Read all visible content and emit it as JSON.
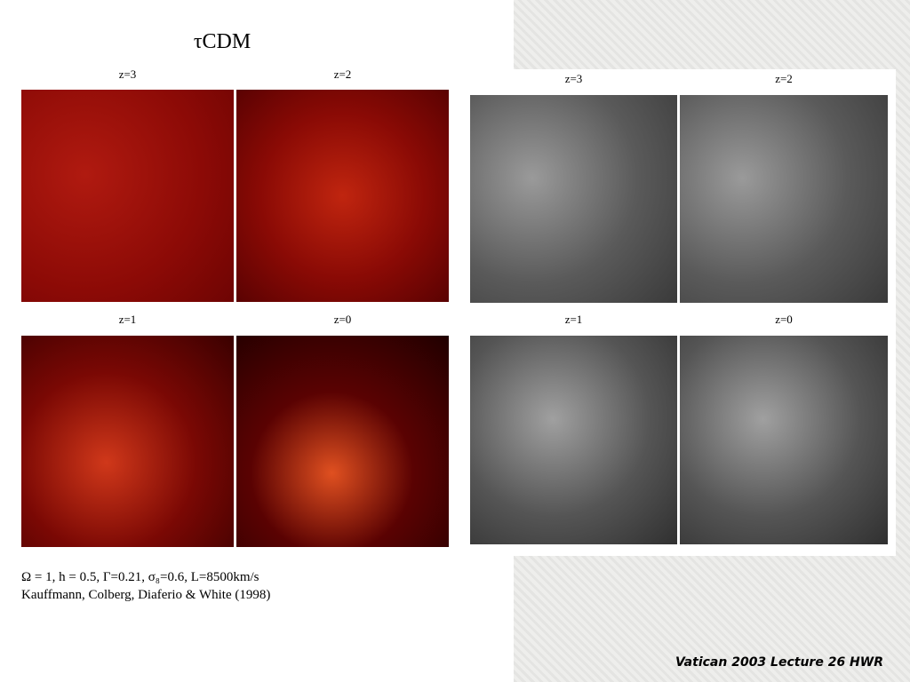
{
  "title": "τCDM",
  "left_panels": [
    {
      "label": "z=3"
    },
    {
      "label": "z=2"
    },
    {
      "label": "z=1"
    },
    {
      "label": "z=0"
    }
  ],
  "right_panels": [
    {
      "label": "z=3"
    },
    {
      "label": "z=2"
    },
    {
      "label": "z=1"
    },
    {
      "label": "z=0"
    }
  ],
  "caption": [
    "Ω = 1, h = 0.5, Γ=0.21, σ₈=0.6, L=8500km/s",
    "Kauffmann, Colberg, Diaferio & White (1998)"
  ],
  "footer": "Vatican 2003 Lecture 26 HWR"
}
